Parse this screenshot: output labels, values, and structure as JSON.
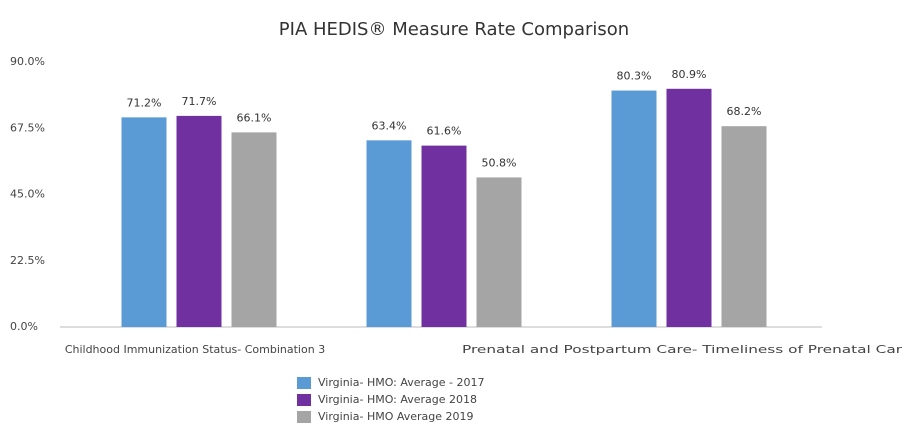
{
  "chart_data": {
    "type": "bar",
    "title": "PIA HEDIS® Measure Rate Comparison",
    "categories": [
      "Childhood Immunization Status- Combination 3",
      null,
      "Prenatal and Postpartum Care- Timeliness of Prenatal Car"
    ],
    "series": [
      {
        "name": "Virginia- HMO: Average - 2017",
        "color": "#5b9bd5",
        "values": [
          71.2,
          63.4,
          80.3
        ],
        "value_labels": [
          "71.2%",
          "63.4%",
          "80.3%"
        ]
      },
      {
        "name": "Virginia- HMO: Average 2018",
        "color": "#7030a0",
        "values": [
          71.7,
          61.6,
          80.9
        ],
        "value_labels": [
          "71.7%",
          "61.6%",
          "80.9%"
        ]
      },
      {
        "name": "Virginia- HMO Average 2019",
        "color": "#a5a5a5",
        "values": [
          66.1,
          50.8,
          68.2
        ],
        "value_labels": [
          "66.1%",
          "50.8%",
          "68.2%"
        ]
      }
    ],
    "ylim": [
      0,
      90
    ],
    "yticks": [
      {
        "value": 0,
        "label": "0.0%"
      },
      {
        "value": 22.5,
        "label": "22.5%"
      },
      {
        "value": 45,
        "label": "45.0%"
      },
      {
        "value": 67.5,
        "label": "67.5%"
      },
      {
        "value": 90,
        "label": "90.0%"
      }
    ],
    "grid": false,
    "legend": "bottom"
  }
}
